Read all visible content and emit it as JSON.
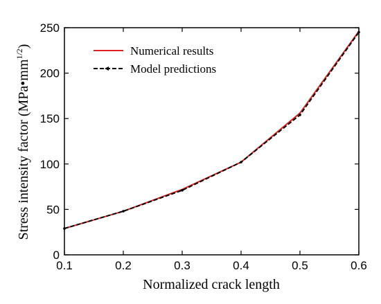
{
  "chart_data": {
    "type": "line",
    "xlabel": "Normalized crack length",
    "ylabel": "Stress intensity factor (MPa•mm",
    "ylabel_sup": "1/2",
    "ylabel_tail": ")",
    "xlim": [
      0.1,
      0.6
    ],
    "ylim": [
      0,
      250
    ],
    "xticks": [
      "0.1",
      "0.2",
      "0.3",
      "0.4",
      "0.5",
      "0.6"
    ],
    "yticks": [
      "0",
      "50",
      "100",
      "150",
      "200",
      "250"
    ],
    "grid": false,
    "legend_position": "top-left",
    "series": [
      {
        "name": "Numerical results",
        "color": "#e02020",
        "style": "solid",
        "x": [
          0.1,
          0.2,
          0.3,
          0.4,
          0.5,
          0.6
        ],
        "y": [
          29,
          48,
          72,
          102,
          156,
          246
        ]
      },
      {
        "name": "Model predictions",
        "color": "#000000",
        "style": "dashed-dot",
        "x": [
          0.1,
          0.2,
          0.3,
          0.4,
          0.5,
          0.6
        ],
        "y": [
          29,
          48,
          71,
          102,
          154,
          245
        ]
      }
    ]
  }
}
